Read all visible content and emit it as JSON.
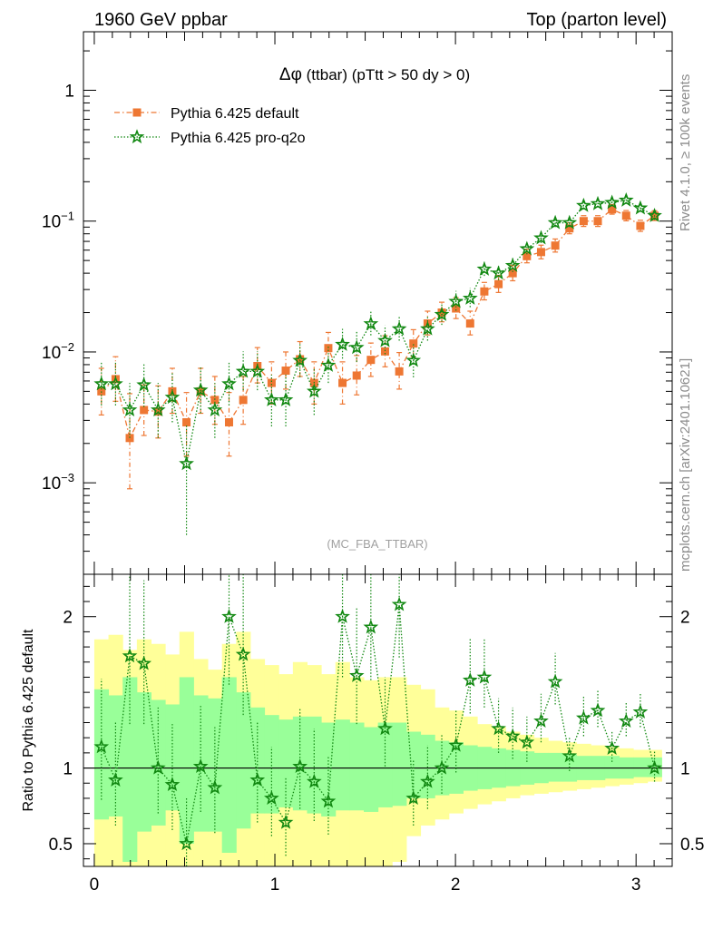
{
  "header": {
    "left": "1960 GeV ppbar",
    "right": "Top (parton level)"
  },
  "side_labels": {
    "rivet": "Rivet 4.1.0, ≥ 100k events",
    "mcplots": "mcplots.cern.ch [arXiv:2401.10621]"
  },
  "colors": {
    "default": "#ee7733",
    "proq2o": "#118811",
    "band_outer": "#ffff99",
    "band_inner": "#99ff99"
  },
  "chart_data": [
    {
      "type": "line",
      "title_symbol": "Δφ",
      "title": "(ttbar) (pTtt > 50 dy > 0)",
      "watermark": "(MC_FBA_TTBAR)",
      "yscale": "log",
      "xlim": [
        -0.06,
        3.2
      ],
      "ylim": [
        0.0002,
        2.8
      ],
      "legend_position": "top-left",
      "x_ticks": [
        0,
        1,
        2,
        3
      ],
      "y_ticks": [
        {
          "value": 0.001,
          "label": "10",
          "exp": "−3"
        },
        {
          "value": 0.01,
          "label": "10",
          "exp": "−2"
        },
        {
          "value": 0.1,
          "label": "10",
          "exp": "−1"
        },
        {
          "value": 1,
          "label": "1",
          "exp": ""
        }
      ],
      "x": [
        0.0393,
        0.1178,
        0.1963,
        0.2749,
        0.3534,
        0.432,
        0.5105,
        0.589,
        0.6676,
        0.7461,
        0.8247,
        0.9032,
        0.9817,
        1.0603,
        1.1388,
        1.2174,
        1.2959,
        1.3744,
        1.453,
        1.5315,
        1.6101,
        1.6886,
        1.7671,
        1.8457,
        1.9242,
        2.0028,
        2.0813,
        2.1598,
        2.2384,
        2.3169,
        2.3955,
        2.474,
        2.5525,
        2.6311,
        2.7096,
        2.7882,
        2.8667,
        2.9452,
        3.0238,
        3.1023
      ],
      "series": [
        {
          "name": "Pythia 6.425 default",
          "marker": "square",
          "values": [
            0.005,
            0.0062,
            0.0022,
            0.0036,
            0.0035,
            0.005,
            0.0029,
            0.005,
            0.0043,
            0.0029,
            0.0043,
            0.0078,
            0.0058,
            0.0072,
            0.0088,
            0.0058,
            0.0107,
            0.0058,
            0.0066,
            0.0087,
            0.0101,
            0.0071,
            0.0116,
            0.0165,
            0.02,
            0.0215,
            0.0165,
            0.029,
            0.033,
            0.04,
            0.054,
            0.058,
            0.065,
            0.088,
            0.1,
            0.1,
            0.123,
            0.11,
            0.092,
            0.11
          ],
          "err_lo": [
            0.0017,
            0.002,
            0.0013,
            0.0013,
            0.0013,
            0.0016,
            0.0013,
            0.0016,
            0.0015,
            0.0013,
            0.0015,
            0.002,
            0.0018,
            0.002,
            0.0023,
            0.0018,
            0.0025,
            0.0018,
            0.0019,
            0.0022,
            0.0024,
            0.0019,
            0.0024,
            0.003,
            0.003,
            0.0035,
            0.003,
            0.004,
            0.0045,
            0.005,
            0.006,
            0.0065,
            0.007,
            0.008,
            0.009,
            0.009,
            0.01,
            0.0095,
            0.0085,
            0.009
          ],
          "err_hi": [
            0.0025,
            0.003,
            0.0026,
            0.002,
            0.002,
            0.0025,
            0.002,
            0.0025,
            0.0022,
            0.002,
            0.0022,
            0.003,
            0.0026,
            0.0028,
            0.0032,
            0.0026,
            0.0034,
            0.0026,
            0.0028,
            0.003,
            0.0032,
            0.0028,
            0.0032,
            0.004,
            0.004,
            0.0045,
            0.004,
            0.005,
            0.0055,
            0.006,
            0.007,
            0.0075,
            0.008,
            0.009,
            0.01,
            0.01,
            0.011,
            0.0105,
            0.0095,
            0.01
          ]
        },
        {
          "name": "Pythia 6.425 pro-q2o",
          "marker": "star",
          "values": [
            0.0057,
            0.0057,
            0.0036,
            0.0056,
            0.0036,
            0.0045,
            0.0014,
            0.0051,
            0.0036,
            0.0057,
            0.0071,
            0.0071,
            0.0043,
            0.0043,
            0.0086,
            0.005,
            0.0079,
            0.0114,
            0.0108,
            0.0164,
            0.0122,
            0.015,
            0.0086,
            0.015,
            0.0193,
            0.0243,
            0.0257,
            0.0429,
            0.04,
            0.0457,
            0.0614,
            0.0743,
            0.0971,
            0.0971,
            0.1314,
            0.1357,
            0.1386,
            0.1443,
            0.1257,
            0.11
          ],
          "err_lo": [
            0.0018,
            0.0018,
            0.0014,
            0.0018,
            0.0014,
            0.0016,
            0.001,
            0.0017,
            0.0014,
            0.0018,
            0.002,
            0.002,
            0.0016,
            0.0016,
            0.0022,
            0.0017,
            0.0021,
            0.0025,
            0.0024,
            0.003,
            0.0026,
            0.0028,
            0.0022,
            0.0028,
            0.0032,
            0.0036,
            0.0037,
            0.0048,
            0.0046,
            0.0049,
            0.0057,
            0.0063,
            0.0072,
            0.0072,
            0.0084,
            0.0085,
            0.0086,
            0.0088,
            0.0082,
            0.0077
          ],
          "err_hi": [
            0.0027,
            0.0027,
            0.0022,
            0.0027,
            0.0022,
            0.0024,
            0.0014,
            0.0026,
            0.0022,
            0.0027,
            0.003,
            0.003,
            0.0024,
            0.0024,
            0.0032,
            0.0025,
            0.0031,
            0.0036,
            0.0035,
            0.0042,
            0.0037,
            0.004,
            0.0032,
            0.004,
            0.0045,
            0.005,
            0.0052,
            0.0064,
            0.0062,
            0.0066,
            0.0075,
            0.0082,
            0.0092,
            0.0092,
            0.0106,
            0.0107,
            0.0108,
            0.011,
            0.0103,
            0.0097
          ]
        }
      ]
    },
    {
      "type": "line",
      "ylabel": "Ratio to Pythia 6.425 default",
      "xlim": [
        -0.06,
        3.2
      ],
      "ylim": [
        0.35,
        2.28
      ],
      "x_ticks": [
        0,
        1,
        2,
        3
      ],
      "y_ticks": [
        0.5,
        1,
        2
      ],
      "reference_line": 1,
      "bin_edges": [
        0,
        0.0785,
        0.1571,
        0.2356,
        0.3142,
        0.3927,
        0.4712,
        0.5498,
        0.6283,
        0.7069,
        0.7854,
        0.8639,
        0.9425,
        1.021,
        1.0996,
        1.1781,
        1.2566,
        1.3352,
        1.4137,
        1.4923,
        1.5708,
        1.6493,
        1.7279,
        1.8064,
        1.885,
        1.9635,
        2.042,
        2.1206,
        2.1991,
        2.2777,
        2.3562,
        2.4347,
        2.5133,
        2.5918,
        2.6704,
        2.7489,
        2.8274,
        2.906,
        2.9845,
        3.0631,
        3.1416
      ],
      "band_outer_lo": [
        0.35,
        0.35,
        0.35,
        0.35,
        0.35,
        0.35,
        0.35,
        0.35,
        0.35,
        0.35,
        0.35,
        0.35,
        0.35,
        0.35,
        0.35,
        0.35,
        0.35,
        0.35,
        0.35,
        0.35,
        0.35,
        0.38,
        0.55,
        0.62,
        0.66,
        0.7,
        0.73,
        0.76,
        0.78,
        0.8,
        0.82,
        0.83,
        0.84,
        0.85,
        0.86,
        0.87,
        0.88,
        0.89,
        0.9,
        0.91
      ],
      "band_outer_hi": [
        1.85,
        1.88,
        1.78,
        1.85,
        1.82,
        1.75,
        1.9,
        1.72,
        1.65,
        1.82,
        1.9,
        1.72,
        1.68,
        1.62,
        1.7,
        1.68,
        1.62,
        1.7,
        1.6,
        1.58,
        1.6,
        1.6,
        1.55,
        1.52,
        1.4,
        1.38,
        1.34,
        1.29,
        1.27,
        1.24,
        1.22,
        1.2,
        1.18,
        1.17,
        1.16,
        1.15,
        1.14,
        1.13,
        1.12,
        1.12
      ],
      "band_inner_lo": [
        0.66,
        0.68,
        0.38,
        0.58,
        0.62,
        0.72,
        0.5,
        0.58,
        0.58,
        0.44,
        0.6,
        0.7,
        0.7,
        0.74,
        0.72,
        0.7,
        0.68,
        0.72,
        0.72,
        0.71,
        0.74,
        0.75,
        0.8,
        0.8,
        0.82,
        0.83,
        0.85,
        0.86,
        0.87,
        0.88,
        0.89,
        0.9,
        0.91,
        0.91,
        0.92,
        0.92,
        0.93,
        0.93,
        0.94,
        0.94
      ],
      "band_inner_hi": [
        1.52,
        1.48,
        1.6,
        1.5,
        1.45,
        1.42,
        1.6,
        1.48,
        1.46,
        1.6,
        1.5,
        1.4,
        1.35,
        1.32,
        1.34,
        1.34,
        1.3,
        1.32,
        1.3,
        1.27,
        1.3,
        1.3,
        1.24,
        1.22,
        1.18,
        1.17,
        1.15,
        1.14,
        1.13,
        1.12,
        1.11,
        1.1,
        1.1,
        1.09,
        1.08,
        1.08,
        1.08,
        1.07,
        1.07,
        1.07
      ],
      "series": [
        {
          "name": "Pythia 6.425 pro-q2o",
          "values": [
            1.14,
            0.92,
            1.74,
            1.69,
            1.0,
            0.89,
            0.5,
            1.01,
            0.87,
            2.0,
            1.75,
            0.92,
            0.8,
            0.64,
            1.01,
            0.91,
            0.78,
            2.0,
            1.61,
            1.93,
            1.26,
            2.08,
            0.8,
            0.91,
            1.0,
            1.15,
            1.58,
            1.6,
            1.26,
            1.21,
            1.17,
            1.31,
            1.57,
            1.08,
            1.33,
            1.38,
            1.13,
            1.31,
            1.37,
            1.0
          ],
          "err_lo": [
            0.35,
            0.3,
            0.45,
            0.4,
            0.3,
            0.3,
            0.2,
            0.3,
            0.3,
            0.45,
            0.4,
            0.28,
            0.25,
            0.22,
            0.28,
            0.26,
            0.22,
            0.4,
            0.32,
            0.35,
            0.25,
            0.35,
            0.18,
            0.18,
            0.17,
            0.18,
            0.22,
            0.2,
            0.16,
            0.15,
            0.13,
            0.14,
            0.15,
            0.1,
            0.12,
            0.11,
            0.09,
            0.1,
            0.1,
            0.09
          ],
          "err_hi": [
            0.45,
            0.38,
            0.65,
            0.55,
            0.4,
            0.4,
            0.3,
            0.4,
            0.4,
            0.6,
            0.55,
            0.38,
            0.34,
            0.3,
            0.38,
            0.35,
            0.3,
            0.55,
            0.45,
            0.5,
            0.34,
            0.5,
            0.25,
            0.24,
            0.22,
            0.24,
            0.28,
            0.26,
            0.2,
            0.19,
            0.17,
            0.18,
            0.19,
            0.13,
            0.15,
            0.14,
            0.12,
            0.13,
            0.13,
            0.11
          ]
        }
      ]
    }
  ]
}
